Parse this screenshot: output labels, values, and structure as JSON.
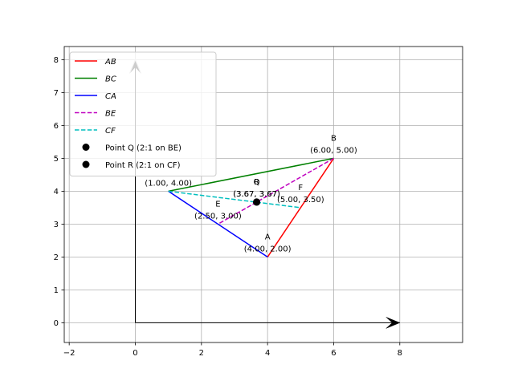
{
  "chart_data": {
    "type": "line",
    "title": "",
    "xlabel": "",
    "ylabel": "",
    "xlim": [
      -2.15,
      9.9
    ],
    "ylim": [
      -0.6,
      8.4
    ],
    "xticks": [
      -2,
      0,
      2,
      4,
      6,
      8
    ],
    "yticks": [
      0,
      1,
      2,
      3,
      4,
      5,
      6,
      7,
      8
    ],
    "grid": true,
    "legend_position": "upper-left",
    "series": [
      {
        "name": "AB",
        "color": "#ff0000",
        "style": "solid",
        "points": [
          [
            4.0,
            2.0
          ],
          [
            6.0,
            5.0
          ]
        ]
      },
      {
        "name": "BC",
        "color": "#008000",
        "style": "solid",
        "points": [
          [
            6.0,
            5.0
          ],
          [
            1.0,
            4.0
          ]
        ]
      },
      {
        "name": "CA",
        "color": "#0000ff",
        "style": "solid",
        "points": [
          [
            1.0,
            4.0
          ],
          [
            4.0,
            2.0
          ]
        ]
      },
      {
        "name": "BE",
        "color": "#bf00bf",
        "style": "dashed",
        "points": [
          [
            6.0,
            5.0
          ],
          [
            2.5,
            3.0
          ]
        ]
      },
      {
        "name": "CF",
        "color": "#00bfbf",
        "style": "dashed",
        "points": [
          [
            1.0,
            4.0
          ],
          [
            5.0,
            3.5
          ]
        ]
      }
    ],
    "markers": [
      {
        "name": "Point Q (2:1 on BE)",
        "x": 3.67,
        "y": 3.67,
        "color": "#000000"
      },
      {
        "name": "Point R (2:1 on CF)",
        "x": 3.67,
        "y": 3.67,
        "color": "#000000"
      }
    ],
    "point_labels": [
      {
        "text": "A",
        "x": 4.0,
        "y": 2.0,
        "placement": "above"
      },
      {
        "text": "(4.00, 2.00)",
        "x": 4.0,
        "y": 2.0,
        "placement": "just-above"
      },
      {
        "text": "B",
        "x": 6.0,
        "y": 5.0,
        "placement": "above"
      },
      {
        "text": "(6.00, 5.00)",
        "x": 6.0,
        "y": 5.0,
        "placement": "just-above"
      },
      {
        "text": "(1.00, 4.00)",
        "x": 1.0,
        "y": 4.0,
        "placement": "just-above"
      },
      {
        "text": "E",
        "x": 2.5,
        "y": 3.0,
        "placement": "above"
      },
      {
        "text": "(2.50, 3.00)",
        "x": 2.5,
        "y": 3.0,
        "placement": "just-above"
      },
      {
        "text": "F",
        "x": 5.0,
        "y": 3.5,
        "placement": "above"
      },
      {
        "text": "(5.00, 3.50)",
        "x": 5.0,
        "y": 3.5,
        "placement": "just-above"
      },
      {
        "text": "Q",
        "x": 3.67,
        "y": 3.67,
        "placement": "above"
      },
      {
        "text": "R",
        "x": 3.67,
        "y": 3.67,
        "placement": "above"
      },
      {
        "text": "(3.67, 3.67)",
        "x": 3.67,
        "y": 3.67,
        "placement": "just-above"
      },
      {
        "text": "(3.67, 3.67)",
        "x": 3.67,
        "y": 3.67,
        "placement": "just-above"
      }
    ],
    "vectors": [
      {
        "name": "x-axis-arrow",
        "from": [
          0,
          0
        ],
        "to": [
          8,
          0
        ],
        "color": "#000000"
      },
      {
        "name": "y-axis-arrow",
        "from": [
          0,
          0
        ],
        "to": [
          0,
          8
        ],
        "color": "#000000"
      }
    ]
  }
}
